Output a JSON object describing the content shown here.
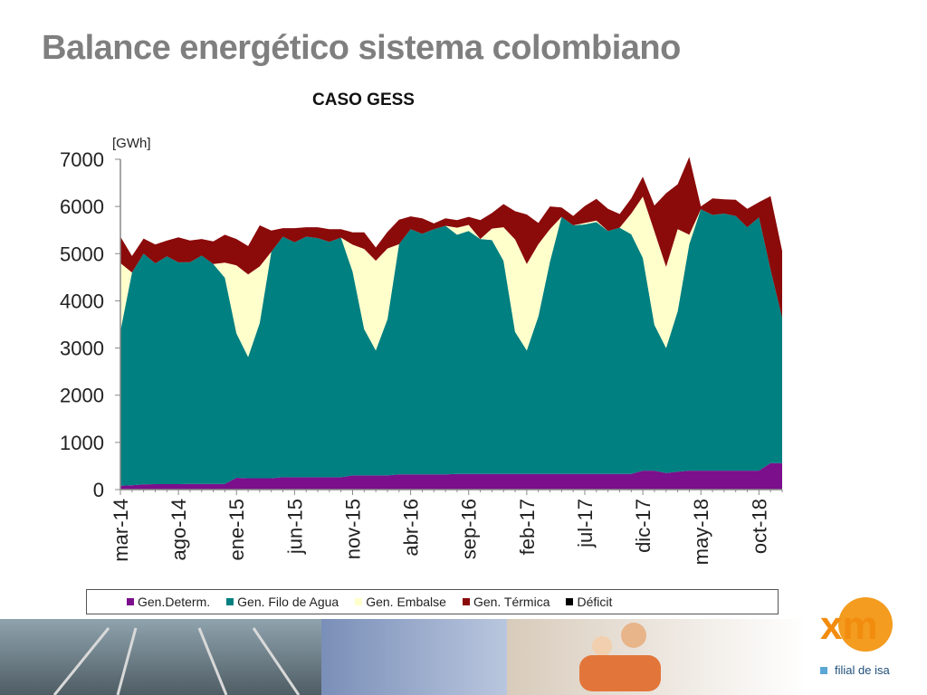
{
  "slide": {
    "title": "Balance energético sistema colombiano"
  },
  "logo": {
    "text": "xm",
    "subtitle": "filial de isa"
  },
  "chart_data": {
    "type": "area",
    "stacked": true,
    "title": "CASO GESS",
    "ylabel": "[GWh]",
    "xlabel": "",
    "ylim": [
      0,
      7000
    ],
    "yticks": [
      0,
      1000,
      2000,
      3000,
      4000,
      5000,
      6000,
      7000
    ],
    "xtick_labels": [
      "mar-14",
      "ago-14",
      "ene-15",
      "jun-15",
      "nov-15",
      "abr-16",
      "sep-16",
      "feb-17",
      "jul-17",
      "dic-17",
      "may-18",
      "oct-18"
    ],
    "xtick_indices": [
      0,
      5,
      10,
      15,
      20,
      25,
      30,
      35,
      40,
      45,
      50,
      55
    ],
    "grid": false,
    "legend_position": "bottom",
    "x": [
      "mar-14",
      "abr-14",
      "may-14",
      "jun-14",
      "jul-14",
      "ago-14",
      "sep-14",
      "oct-14",
      "nov-14",
      "dic-14",
      "ene-15",
      "feb-15",
      "mar-15",
      "abr-15",
      "may-15",
      "jun-15",
      "jul-15",
      "ago-15",
      "sep-15",
      "oct-15",
      "nov-15",
      "dic-15",
      "ene-16",
      "feb-16",
      "mar-16",
      "abr-16",
      "may-16",
      "jun-16",
      "jul-16",
      "ago-16",
      "sep-16",
      "oct-16",
      "nov-16",
      "dic-16",
      "ene-17",
      "feb-17",
      "mar-17",
      "abr-17",
      "may-17",
      "jun-17",
      "jul-17",
      "ago-17",
      "sep-17",
      "oct-17",
      "nov-17",
      "dic-17",
      "ene-18",
      "feb-18",
      "mar-18",
      "abr-18",
      "may-18",
      "jun-18",
      "jul-18",
      "ago-18",
      "sep-18",
      "oct-18",
      "nov-18",
      "dic-18"
    ],
    "series": [
      {
        "name": "Gen.Determ.",
        "color": "#7b0f8c",
        "values": [
          80,
          90,
          110,
          115,
          115,
          115,
          120,
          120,
          120,
          120,
          250,
          240,
          240,
          240,
          260,
          260,
          260,
          260,
          260,
          260,
          300,
          300,
          300,
          300,
          320,
          320,
          320,
          320,
          320,
          330,
          330,
          330,
          330,
          330,
          330,
          330,
          330,
          330,
          330,
          330,
          330,
          330,
          330,
          330,
          330,
          400,
          400,
          350,
          380,
          400,
          400,
          400,
          400,
          400,
          400,
          400,
          560,
          560
        ]
      },
      {
        "name": "Gen. Filo de Agua",
        "color": "#008080",
        "values": [
          3280,
          4510,
          4890,
          4680,
          4830,
          4700,
          4700,
          4840,
          4660,
          4370,
          3060,
          2570,
          3290,
          4800,
          5100,
          4980,
          5100,
          5070,
          4990,
          5080,
          4320,
          3100,
          2650,
          3310,
          4880,
          5200,
          5100,
          5200,
          5270,
          5070,
          5150,
          4980,
          4960,
          4520,
          3010,
          2620,
          3340,
          4500,
          5450,
          5270,
          5290,
          5340,
          5150,
          5220,
          5080,
          4510,
          3090,
          2650,
          3400,
          4800,
          5540,
          5420,
          5450,
          5400,
          5160,
          5370,
          4100,
          3080
        ]
      },
      {
        "name": "Gen. Embalse",
        "color": "#ffffcc",
        "values": [
          1440,
          0,
          0,
          0,
          0,
          0,
          0,
          0,
          0,
          320,
          1440,
          1750,
          1200,
          0,
          0,
          0,
          0,
          0,
          0,
          0,
          570,
          1700,
          1900,
          1500,
          0,
          0,
          0,
          0,
          0,
          150,
          130,
          0,
          240,
          710,
          1960,
          1830,
          1530,
          690,
          0,
          0,
          30,
          30,
          0,
          0,
          440,
          1300,
          1980,
          1720,
          1740,
          200,
          0,
          0,
          0,
          0,
          0,
          0,
          0,
          0
        ]
      },
      {
        "name": "Gen. Térmica",
        "color": "#8b0a0a",
        "values": [
          560,
          350,
          320,
          400,
          330,
          530,
          460,
          350,
          480,
          590,
          560,
          600,
          870,
          450,
          180,
          300,
          200,
          230,
          270,
          180,
          260,
          350,
          280,
          350,
          520,
          270,
          330,
          120,
          160,
          160,
          170,
          400,
          330,
          490,
          600,
          1050,
          450,
          480,
          200,
          200,
          360,
          460,
          470,
          290,
          320,
          420,
          550,
          1560,
          950,
          1650,
          60,
          350,
          300,
          340,
          390,
          320,
          1560,
          1420
        ]
      },
      {
        "name": "Déficit",
        "color": "#000000",
        "values": [
          0,
          0,
          0,
          0,
          0,
          0,
          0,
          0,
          0,
          0,
          0,
          0,
          0,
          0,
          0,
          0,
          0,
          0,
          0,
          0,
          0,
          0,
          0,
          0,
          0,
          0,
          0,
          0,
          0,
          0,
          0,
          0,
          0,
          0,
          0,
          0,
          0,
          0,
          0,
          0,
          0,
          0,
          0,
          0,
          0,
          0,
          0,
          0,
          0,
          0,
          0,
          0,
          0,
          0,
          0,
          0,
          0,
          0
        ]
      }
    ]
  }
}
